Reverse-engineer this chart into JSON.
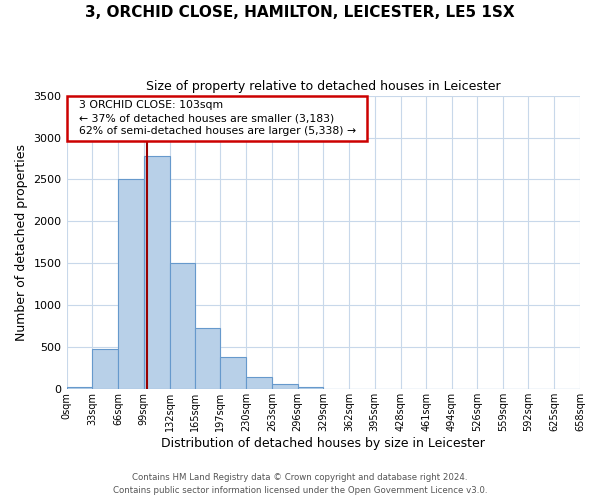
{
  "title": "3, ORCHID CLOSE, HAMILTON, LEICESTER, LE5 1SX",
  "subtitle": "Size of property relative to detached houses in Leicester",
  "xlabel": "Distribution of detached houses by size in Leicester",
  "ylabel": "Number of detached properties",
  "bin_edges": [
    0,
    33,
    66,
    99,
    132,
    165,
    197,
    230,
    263,
    296,
    329,
    362,
    395,
    428,
    461,
    494,
    526,
    559,
    592,
    625,
    658
  ],
  "bin_labels": [
    "0sqm",
    "33sqm",
    "66sqm",
    "99sqm",
    "132sqm",
    "165sqm",
    "197sqm",
    "230sqm",
    "263sqm",
    "296sqm",
    "329sqm",
    "362sqm",
    "395sqm",
    "428sqm",
    "461sqm",
    "494sqm",
    "526sqm",
    "559sqm",
    "592sqm",
    "625sqm",
    "658sqm"
  ],
  "bar_heights": [
    25,
    475,
    2500,
    2780,
    1500,
    735,
    390,
    150,
    65,
    30,
    0,
    0,
    0,
    0,
    0,
    0,
    0,
    0,
    0,
    0
  ],
  "bar_color": "#b8d0e8",
  "bar_edge_color": "#6699cc",
  "ylim": [
    0,
    3500
  ],
  "yticks": [
    0,
    500,
    1000,
    1500,
    2000,
    2500,
    3000,
    3500
  ],
  "property_size": 103,
  "property_line_color": "#990000",
  "annotation_title": "3 ORCHID CLOSE: 103sqm",
  "annotation_line1": "← 37% of detached houses are smaller (3,183)",
  "annotation_line2": "62% of semi-detached houses are larger (5,338) →",
  "annotation_box_color": "#ffffff",
  "annotation_border_color": "#cc0000",
  "footer_line1": "Contains HM Land Registry data © Crown copyright and database right 2024.",
  "footer_line2": "Contains public sector information licensed under the Open Government Licence v3.0.",
  "background_color": "#ffffff",
  "plot_bg_color": "#ffffff",
  "grid_color": "#c8d8ea"
}
